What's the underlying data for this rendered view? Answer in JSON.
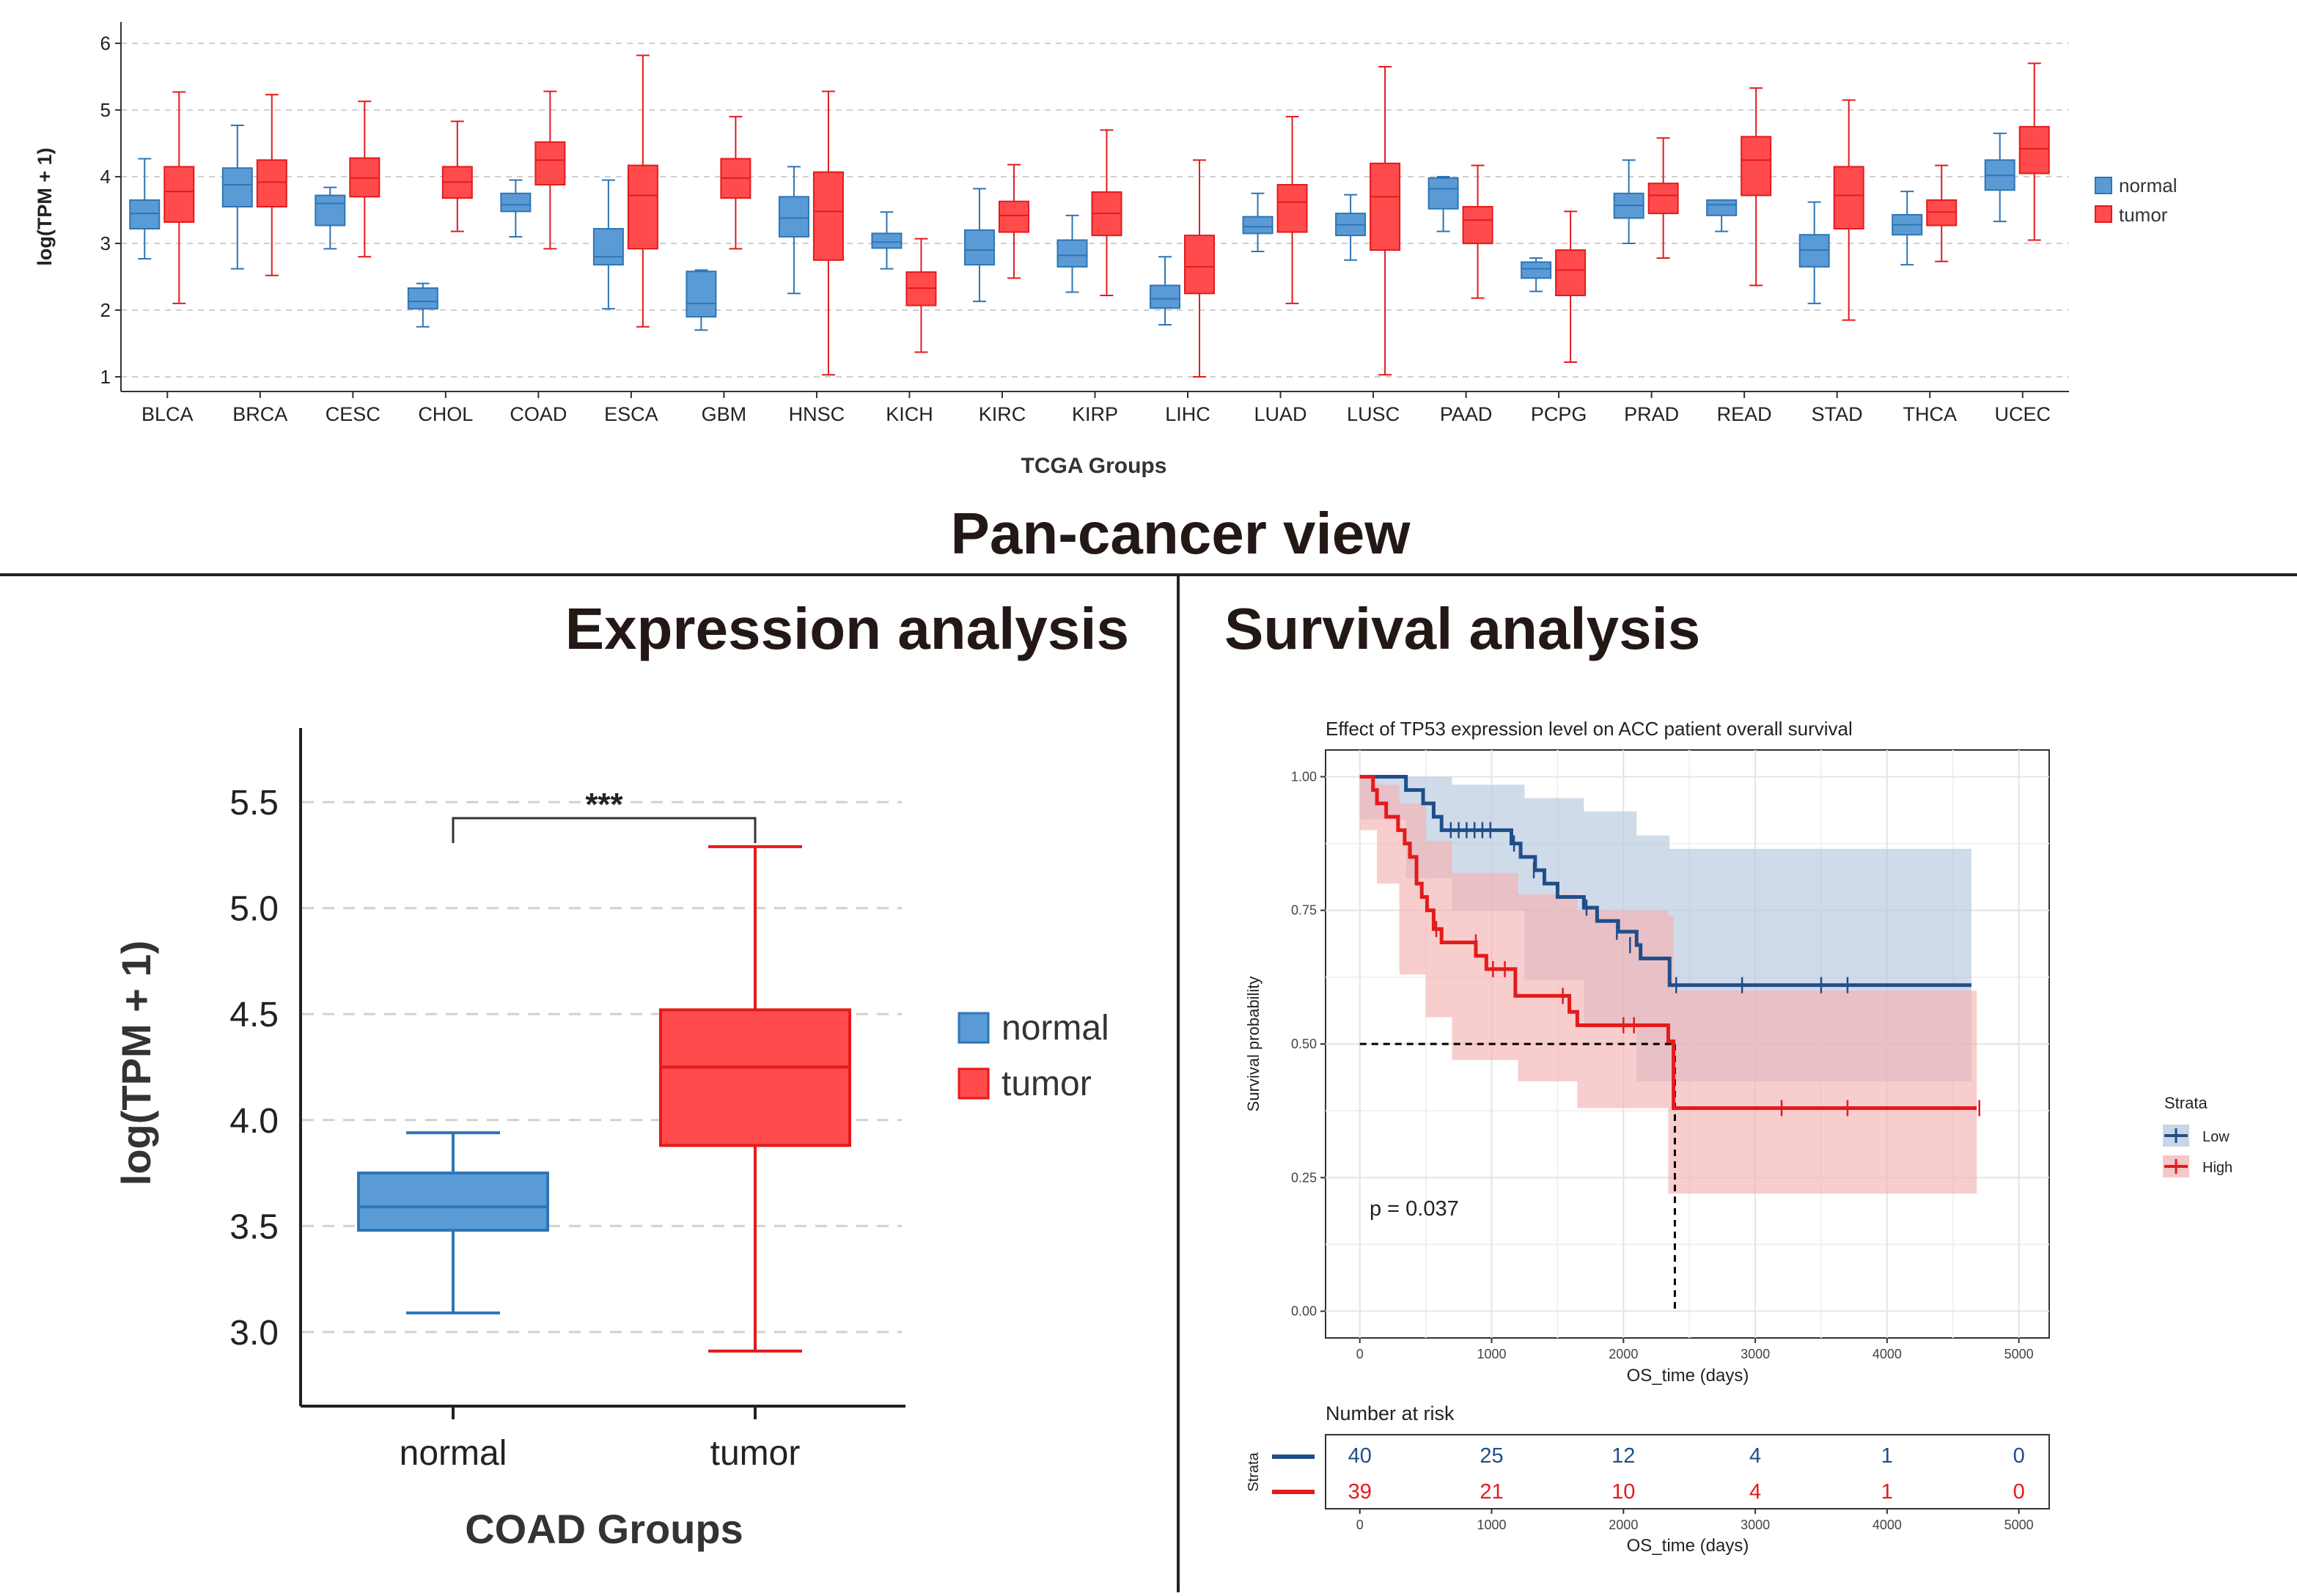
{
  "page": {
    "title": "Pan-cancer view",
    "left_title": "Expression analysis",
    "right_title": "Survival analysis"
  },
  "colors": {
    "normal_fill": "#5b9bd5",
    "normal_stroke": "#2e75b6",
    "tumor_fill": "#ff4b4b",
    "tumor_stroke": "#e41a1c",
    "low_line": "#1f4e89",
    "high_line": "#e41a1c",
    "low_band": "#b7c8de",
    "high_band": "#f4b2b2",
    "grid": "#cccccc"
  },
  "chart_data": [
    {
      "type": "box",
      "xlabel": "TCGA Groups",
      "ylabel": "log(TPM + 1)",
      "ylim": [
        1,
        6
      ],
      "yticks": [
        "1",
        "2",
        "3",
        "4",
        "5",
        "6"
      ],
      "grid": "dashed horizontal",
      "legend": [
        "normal",
        "tumor"
      ],
      "legend_placement": "right",
      "categories": [
        "BLCA",
        "BRCA",
        "CESC",
        "CHOL",
        "COAD",
        "ESCA",
        "GBM",
        "HNSC",
        "KICH",
        "KIRC",
        "KIRP",
        "LIHC",
        "LUAD",
        "LUSC",
        "PAAD",
        "PCPG",
        "PRAD",
        "READ",
        "STAD",
        "THCA",
        "UCEC"
      ],
      "series": [
        {
          "name": "normal",
          "boxes": [
            [
              2.77,
              3.22,
              3.45,
              3.65,
              4.27
            ],
            [
              2.62,
              3.55,
              3.88,
              4.13,
              4.77
            ],
            [
              2.92,
              3.27,
              3.6,
              3.72,
              3.84
            ],
            [
              1.75,
              2.02,
              2.13,
              2.33,
              2.4
            ],
            [
              3.1,
              3.48,
              3.58,
              3.75,
              3.95
            ],
            [
              2.02,
              2.68,
              2.8,
              3.22,
              3.95
            ],
            [
              1.7,
              1.9,
              2.1,
              2.58,
              2.6
            ],
            [
              2.25,
              3.1,
              3.38,
              3.7,
              4.15
            ],
            [
              2.62,
              2.93,
              3.02,
              3.15,
              3.47
            ],
            [
              2.13,
              2.68,
              2.9,
              3.2,
              3.82
            ],
            [
              2.27,
              2.65,
              2.82,
              3.05,
              3.42
            ],
            [
              1.78,
              2.03,
              2.17,
              2.37,
              2.8
            ],
            [
              2.88,
              3.15,
              3.25,
              3.4,
              3.75
            ],
            [
              2.75,
              3.12,
              3.28,
              3.45,
              3.73
            ],
            [
              3.18,
              3.52,
              3.82,
              3.98,
              4.0
            ],
            [
              2.28,
              2.48,
              2.62,
              2.72,
              2.78
            ],
            [
              3.0,
              3.38,
              3.57,
              3.75,
              4.25
            ],
            [
              3.18,
              3.42,
              3.58,
              3.65,
              3.65
            ],
            [
              2.1,
              2.65,
              2.9,
              3.13,
              3.62
            ],
            [
              2.68,
              3.13,
              3.28,
              3.43,
              3.78
            ],
            [
              3.33,
              3.8,
              4.02,
              4.25,
              4.65
            ]
          ]
        },
        {
          "name": "tumor",
          "boxes": [
            [
              2.1,
              3.32,
              3.78,
              4.15,
              5.27
            ],
            [
              2.52,
              3.55,
              3.92,
              4.25,
              5.23
            ],
            [
              2.8,
              3.7,
              3.98,
              4.28,
              5.13
            ],
            [
              3.18,
              3.68,
              3.92,
              4.15,
              4.83
            ],
            [
              2.92,
              3.88,
              4.25,
              4.52,
              5.28
            ],
            [
              1.75,
              2.92,
              3.72,
              4.17,
              5.82
            ],
            [
              2.92,
              3.68,
              3.98,
              4.27,
              4.9
            ],
            [
              1.03,
              2.75,
              3.48,
              4.07,
              5.28
            ],
            [
              1.37,
              2.07,
              2.33,
              2.57,
              3.07
            ],
            [
              2.48,
              3.17,
              3.42,
              3.63,
              4.18
            ],
            [
              2.22,
              3.12,
              3.45,
              3.77,
              4.7
            ],
            [
              1.0,
              2.25,
              2.65,
              3.12,
              4.25
            ],
            [
              2.1,
              3.17,
              3.62,
              3.88,
              4.9
            ],
            [
              1.03,
              2.9,
              3.7,
              4.2,
              5.65
            ],
            [
              2.18,
              3.0,
              3.35,
              3.55,
              4.17
            ],
            [
              1.22,
              2.22,
              2.6,
              2.9,
              3.48
            ],
            [
              2.78,
              3.45,
              3.72,
              3.9,
              4.58
            ],
            [
              2.37,
              3.72,
              4.25,
              4.6,
              5.33
            ],
            [
              1.85,
              3.22,
              3.72,
              4.15,
              5.15
            ],
            [
              2.73,
              3.27,
              3.47,
              3.65,
              4.17
            ],
            [
              3.05,
              4.05,
              4.42,
              4.75,
              5.7
            ]
          ]
        }
      ]
    },
    {
      "type": "box",
      "xlabel": "COAD Groups",
      "ylabel": "log(TPM + 1)",
      "ylim": [
        2.65,
        5.85
      ],
      "yticks": [
        "3.0",
        "3.5",
        "4.0",
        "4.5",
        "5.0",
        "5.5"
      ],
      "categories": [
        "normal",
        "tumor"
      ],
      "legend": [
        "normal",
        "tumor"
      ],
      "legend_placement": "right",
      "significance": "***",
      "boxes": [
        [
          3.09,
          3.48,
          3.59,
          3.75,
          3.94
        ],
        [
          2.91,
          3.88,
          4.25,
          4.52,
          5.29
        ]
      ]
    },
    {
      "type": "line",
      "title": "Effect of TP53 expression level on ACC patient overall survival",
      "xlabel": "OS_time (days)",
      "ylabel": "Survival probability",
      "xlim": [
        -260,
        5230
      ],
      "ylim": [
        -0.05,
        1.05
      ],
      "xticks": [
        "0",
        "1000",
        "2000",
        "3000",
        "4000",
        "5000"
      ],
      "yticks": [
        "0.00",
        "0.25",
        "0.50",
        "0.75",
        "1.00"
      ],
      "pvalue": "p = 0.037",
      "legend_title": "Strata",
      "legend": [
        "Low",
        "High"
      ],
      "legend_placement": "right",
      "median_line_y": 0.5,
      "median_x": 2390,
      "series": [
        {
          "name": "Low",
          "steps": [
            [
              0,
              1.0
            ],
            [
              350,
              0.975
            ],
            [
              480,
              0.95
            ],
            [
              560,
              0.925
            ],
            [
              620,
              0.9
            ],
            [
              1150,
              0.875
            ],
            [
              1220,
              0.85
            ],
            [
              1330,
              0.825
            ],
            [
              1400,
              0.8
            ],
            [
              1500,
              0.775
            ],
            [
              1620,
              0.775
            ],
            [
              1700,
              0.755
            ],
            [
              1800,
              0.73
            ],
            [
              1960,
              0.71
            ],
            [
              2100,
              0.685
            ],
            [
              2130,
              0.66
            ],
            [
              2350,
              0.61
            ],
            [
              4640,
              0.61
            ]
          ],
          "censors": [
            [
              690,
              0.9
            ],
            [
              750,
              0.9
            ],
            [
              810,
              0.9
            ],
            [
              870,
              0.9
            ],
            [
              930,
              0.9
            ],
            [
              990,
              0.9
            ],
            [
              1170,
              0.875
            ],
            [
              1320,
              0.825
            ],
            [
              1720,
              0.755
            ],
            [
              1950,
              0.71
            ],
            [
              2050,
              0.685
            ],
            [
              2400,
              0.61
            ],
            [
              2900,
              0.61
            ],
            [
              3500,
              0.61
            ],
            [
              3700,
              0.61
            ]
          ],
          "band_upper": [
            [
              0,
              1.0
            ],
            [
              350,
              1.0
            ],
            [
              700,
              0.985
            ],
            [
              1250,
              0.96
            ],
            [
              1700,
              0.935
            ],
            [
              2100,
              0.89
            ],
            [
              2350,
              0.865
            ],
            [
              4640,
              0.865
            ]
          ],
          "band_lower": [
            [
              0,
              1.0
            ],
            [
              350,
              0.92
            ],
            [
              700,
              0.81
            ],
            [
              1250,
              0.75
            ],
            [
              1700,
              0.62
            ],
            [
              2100,
              0.53
            ],
            [
              2350,
              0.43
            ],
            [
              4640,
              0.43
            ]
          ]
        },
        {
          "name": "High",
          "steps": [
            [
              0,
              1.0
            ],
            [
              100,
              0.975
            ],
            [
              130,
              0.95
            ],
            [
              200,
              0.925
            ],
            [
              290,
              0.9
            ],
            [
              340,
              0.875
            ],
            [
              380,
              0.85
            ],
            [
              430,
              0.8
            ],
            [
              470,
              0.775
            ],
            [
              510,
              0.75
            ],
            [
              560,
              0.715
            ],
            [
              620,
              0.69
            ],
            [
              880,
              0.665
            ],
            [
              960,
              0.64
            ],
            [
              1180,
              0.59
            ],
            [
              1530,
              0.59
            ],
            [
              1590,
              0.56
            ],
            [
              1650,
              0.535
            ],
            [
              2340,
              0.505
            ],
            [
              2380,
              0.38
            ],
            [
              4680,
              0.38
            ]
          ],
          "censors": [
            [
              580,
              0.715
            ],
            [
              880,
              0.69
            ],
            [
              1010,
              0.64
            ],
            [
              1100,
              0.64
            ],
            [
              1540,
              0.59
            ],
            [
              2000,
              0.535
            ],
            [
              2080,
              0.535
            ],
            [
              3200,
              0.38
            ],
            [
              3700,
              0.38
            ],
            [
              4700,
              0.38
            ]
          ],
          "band_upper": [
            [
              0,
              1.0
            ],
            [
              130,
              0.985
            ],
            [
              300,
              0.95
            ],
            [
              500,
              0.88
            ],
            [
              700,
              0.82
            ],
            [
              1200,
              0.78
            ],
            [
              1650,
              0.75
            ],
            [
              2340,
              0.74
            ],
            [
              2380,
              0.6
            ],
            [
              4680,
              0.6
            ]
          ],
          "band_lower": [
            [
              0,
              1.0
            ],
            [
              130,
              0.9
            ],
            [
              300,
              0.8
            ],
            [
              500,
              0.63
            ],
            [
              700,
              0.55
            ],
            [
              1200,
              0.47
            ],
            [
              1650,
              0.43
            ],
            [
              2340,
              0.38
            ],
            [
              2380,
              0.22
            ],
            [
              4680,
              0.22
            ]
          ]
        }
      ]
    },
    {
      "type": "table",
      "title": "Number at risk",
      "ylabel": "Strata",
      "xlabel": "OS_time (days)",
      "xticks": [
        "0",
        "1000",
        "2000",
        "3000",
        "4000",
        "5000"
      ],
      "rows": [
        {
          "name": "Low",
          "values": [
            "40",
            "25",
            "12",
            "4",
            "1",
            "0"
          ]
        },
        {
          "name": "High",
          "values": [
            "39",
            "21",
            "10",
            "4",
            "1",
            "0"
          ]
        }
      ]
    }
  ]
}
